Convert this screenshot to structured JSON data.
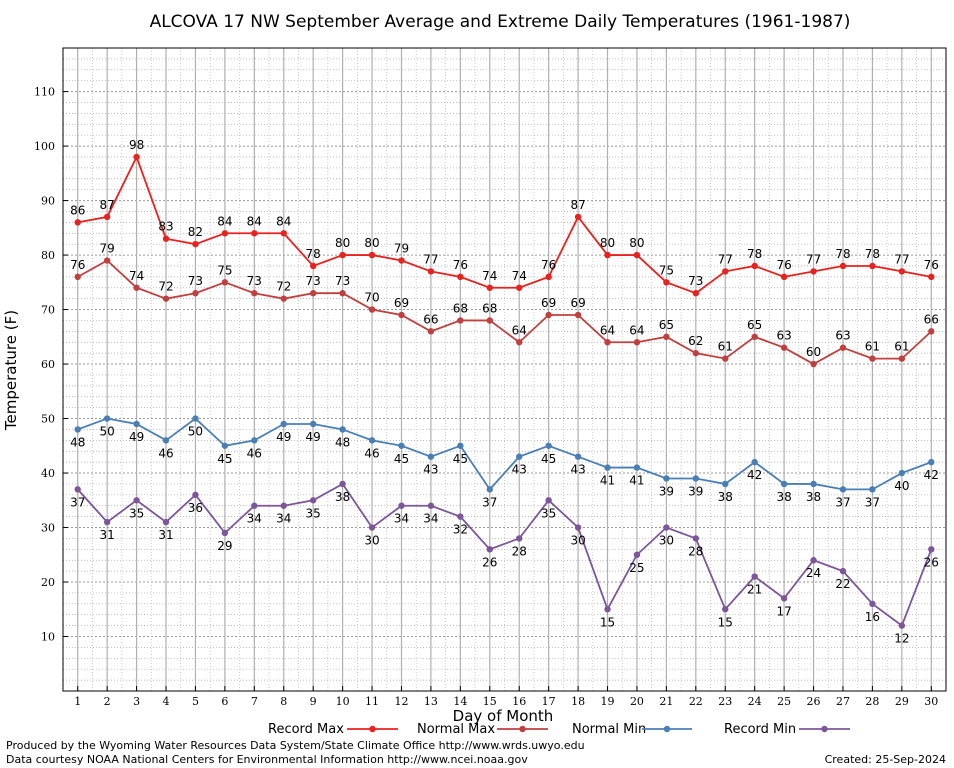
{
  "chart_data": {
    "type": "line",
    "title": "ALCOVA 17 NW September Average and Extreme Daily Temperatures (1961-1987)",
    "xlabel": "Day of Month",
    "ylabel": "Temperature (F)",
    "x": [
      1,
      2,
      3,
      4,
      5,
      6,
      7,
      8,
      9,
      10,
      11,
      12,
      13,
      14,
      15,
      16,
      17,
      18,
      19,
      20,
      21,
      22,
      23,
      24,
      25,
      26,
      27,
      28,
      29,
      30
    ],
    "xlim": [
      0.5,
      30.5
    ],
    "ylim": [
      0,
      118
    ],
    "yticks": [
      10,
      20,
      30,
      40,
      50,
      60,
      70,
      80,
      90,
      100,
      110
    ],
    "grid": true,
    "legend_placement": "bottom",
    "series": [
      {
        "name": "Record Max",
        "color": "#e8221e",
        "values": [
          86,
          87,
          98,
          83,
          82,
          84,
          84,
          84,
          78,
          80,
          80,
          79,
          77,
          76,
          74,
          74,
          76,
          87,
          80,
          80,
          75,
          73,
          77,
          78,
          76,
          77,
          78,
          78,
          77,
          76
        ]
      },
      {
        "name": "Normal Max",
        "color": "#c0403f",
        "values": [
          76,
          79,
          74,
          72,
          73,
          75,
          73,
          72,
          73,
          73,
          70,
          69,
          66,
          68,
          68,
          64,
          69,
          69,
          64,
          64,
          65,
          62,
          61,
          65,
          63,
          60,
          63,
          61,
          61,
          66
        ]
      },
      {
        "name": "Normal Min",
        "color": "#4a7fb5",
        "values": [
          48,
          50,
          49,
          46,
          50,
          45,
          46,
          49,
          49,
          48,
          46,
          45,
          43,
          45,
          37,
          43,
          45,
          43,
          41,
          41,
          39,
          39,
          38,
          42,
          38,
          38,
          37,
          37,
          40,
          42
        ]
      },
      {
        "name": "Record Min",
        "color": "#7d569a",
        "values": [
          37,
          31,
          35,
          31,
          36,
          29,
          34,
          34,
          35,
          38,
          30,
          34,
          34,
          32,
          26,
          28,
          35,
          30,
          15,
          25,
          30,
          28,
          15,
          21,
          17,
          24,
          22,
          16,
          12,
          26
        ]
      }
    ]
  },
  "credits": {
    "line1": "Produced by the Wyoming Water Resources Data System/State Climate Office http://www.wrds.uwyo.edu",
    "line2": "Data courtesy NOAA National Centers for Environmental Information http://www.ncei.noaa.gov",
    "created": "Created:  25-Sep-2024"
  }
}
